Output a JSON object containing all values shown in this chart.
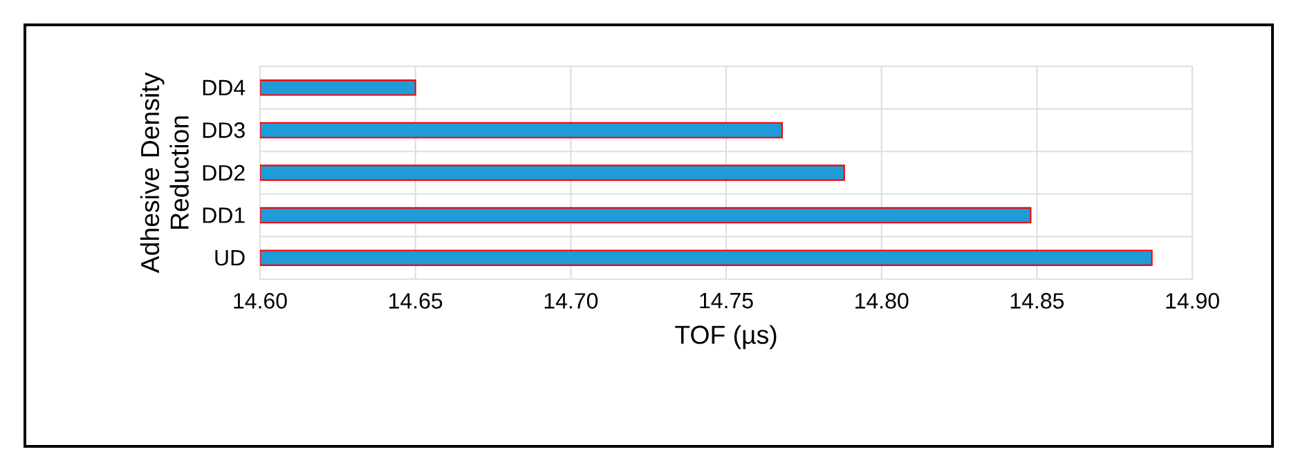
{
  "chart_data": {
    "type": "bar",
    "orientation": "horizontal",
    "xlabel": "TOF (µs)",
    "ylabel": "Adhesive Density Reduction",
    "categories": [
      "DD4",
      "DD3",
      "DD2",
      "DD1",
      "UD"
    ],
    "values": [
      14.65,
      14.768,
      14.788,
      14.848,
      14.887
    ],
    "color": "#1f9bd8",
    "xlim": [
      14.6,
      14.9
    ],
    "xticks": [
      {
        "value": 14.6,
        "label": "14.60"
      },
      {
        "value": 14.65,
        "label": "14.65"
      },
      {
        "value": 14.7,
        "label": "14.70"
      },
      {
        "value": 14.75,
        "label": "14.75"
      },
      {
        "value": 14.8,
        "label": "14.80"
      },
      {
        "value": 14.85,
        "label": "14.85"
      },
      {
        "value": 14.9,
        "label": "14.90"
      }
    ],
    "grid": true
  }
}
